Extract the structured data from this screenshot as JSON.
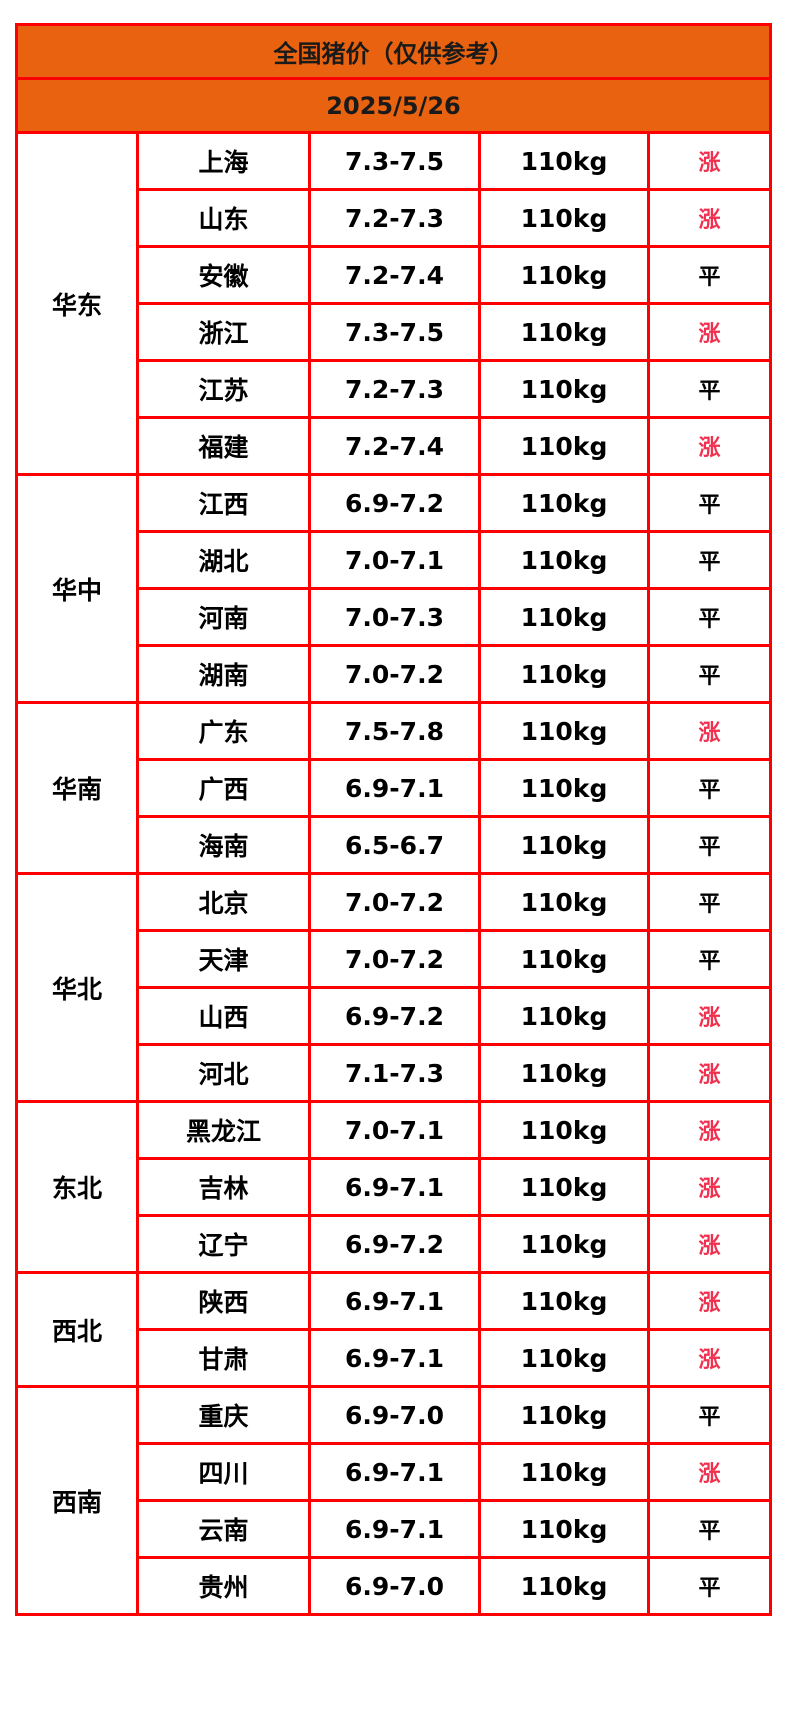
{
  "title": "全国猪价（仅供参考）",
  "date": "2025/5/26",
  "colors": {
    "header_bg": "#E8620F",
    "border": "#FF0000",
    "up": "#F0304F",
    "flat": "#000000"
  },
  "regions": [
    {
      "name": "华东",
      "rows": [
        {
          "province": "上海",
          "price": "7.3-7.5",
          "weight": "110kg",
          "trend": "涨"
        },
        {
          "province": "山东",
          "price": "7.2-7.3",
          "weight": "110kg",
          "trend": "涨"
        },
        {
          "province": "安徽",
          "price": "7.2-7.4",
          "weight": "110kg",
          "trend": "平"
        },
        {
          "province": "浙江",
          "price": "7.3-7.5",
          "weight": "110kg",
          "trend": "涨"
        },
        {
          "province": "江苏",
          "price": "7.2-7.3",
          "weight": "110kg",
          "trend": "平"
        },
        {
          "province": "福建",
          "price": "7.2-7.4",
          "weight": "110kg",
          "trend": "涨"
        }
      ]
    },
    {
      "name": "华中",
      "rows": [
        {
          "province": "江西",
          "price": "6.9-7.2",
          "weight": "110kg",
          "trend": "平"
        },
        {
          "province": "湖北",
          "price": "7.0-7.1",
          "weight": "110kg",
          "trend": "平"
        },
        {
          "province": "河南",
          "price": "7.0-7.3",
          "weight": "110kg",
          "trend": "平"
        },
        {
          "province": "湖南",
          "price": "7.0-7.2",
          "weight": "110kg",
          "trend": "平"
        }
      ]
    },
    {
      "name": "华南",
      "rows": [
        {
          "province": "广东",
          "price": "7.5-7.8",
          "weight": "110kg",
          "trend": "涨"
        },
        {
          "province": "广西",
          "price": "6.9-7.1",
          "weight": "110kg",
          "trend": "平"
        },
        {
          "province": "海南",
          "price": "6.5-6.7",
          "weight": "110kg",
          "trend": "平"
        }
      ]
    },
    {
      "name": "华北",
      "rows": [
        {
          "province": "北京",
          "price": "7.0-7.2",
          "weight": "110kg",
          "trend": "平"
        },
        {
          "province": "天津",
          "price": "7.0-7.2",
          "weight": "110kg",
          "trend": "平"
        },
        {
          "province": "山西",
          "price": "6.9-7.2",
          "weight": "110kg",
          "trend": "涨"
        },
        {
          "province": "河北",
          "price": "7.1-7.3",
          "weight": "110kg",
          "trend": "涨"
        }
      ]
    },
    {
      "name": "东北",
      "rows": [
        {
          "province": "黑龙江",
          "price": "7.0-7.1",
          "weight": "110kg",
          "trend": "涨"
        },
        {
          "province": "吉林",
          "price": "6.9-7.1",
          "weight": "110kg",
          "trend": "涨"
        },
        {
          "province": "辽宁",
          "price": "6.9-7.2",
          "weight": "110kg",
          "trend": "涨"
        }
      ]
    },
    {
      "name": "西北",
      "rows": [
        {
          "province": "陕西",
          "price": "6.9-7.1",
          "weight": "110kg",
          "trend": "涨"
        },
        {
          "province": "甘肃",
          "price": "6.9-7.1",
          "weight": "110kg",
          "trend": "涨"
        }
      ]
    },
    {
      "name": "西南",
      "rows": [
        {
          "province": "重庆",
          "price": "6.9-7.0",
          "weight": "110kg",
          "trend": "平"
        },
        {
          "province": "四川",
          "price": "6.9-7.1",
          "weight": "110kg",
          "trend": "涨"
        },
        {
          "province": "云南",
          "price": "6.9-7.1",
          "weight": "110kg",
          "trend": "平"
        },
        {
          "province": "贵州",
          "price": "6.9-7.0",
          "weight": "110kg",
          "trend": "平"
        }
      ]
    }
  ]
}
